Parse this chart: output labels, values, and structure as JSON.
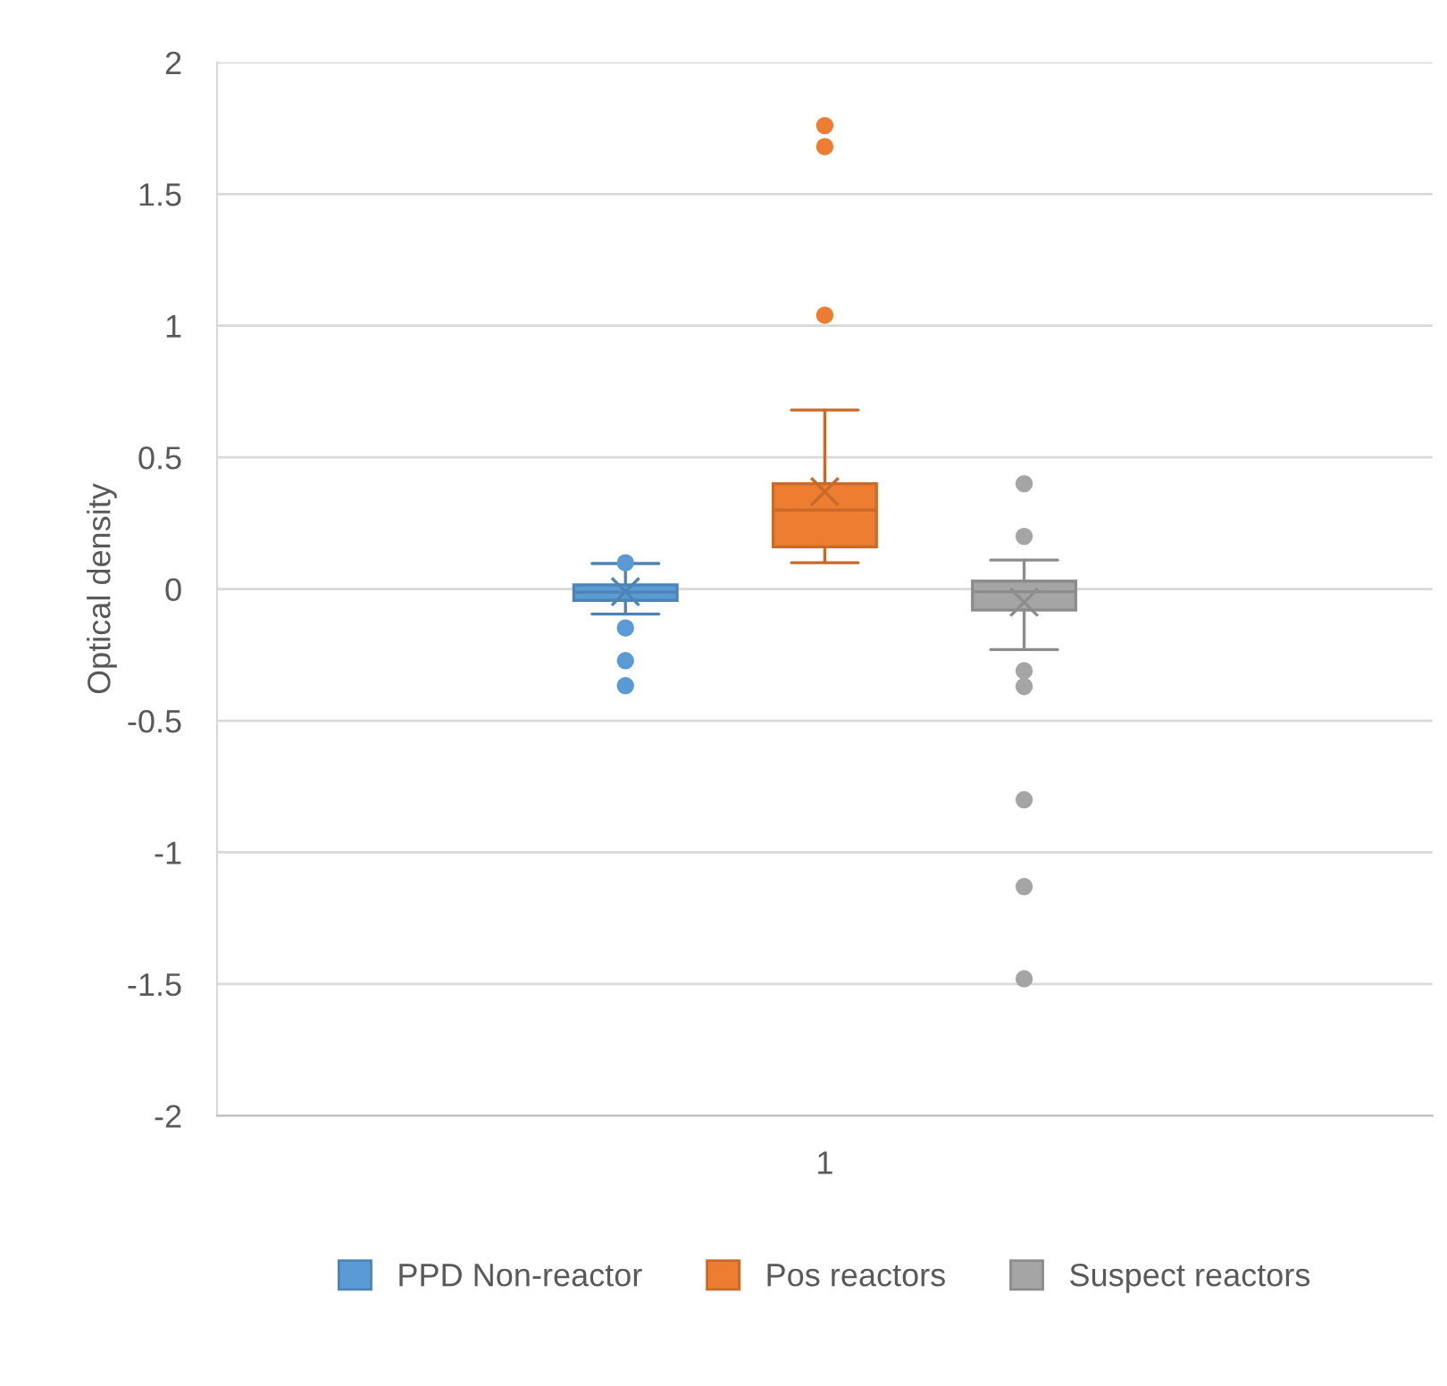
{
  "chart_data": {
    "type": "box",
    "ylabel": "Optical density",
    "categories": [
      "1"
    ],
    "series": [
      {
        "name": "PPD Non-reactor",
        "color": "#5b9bd5",
        "boxes": [
          {
            "low": -0.095,
            "q1": -0.043,
            "median": -0.012,
            "q3": 0.016,
            "high": 0.097,
            "mean": -0.01,
            "outliers": [
              0.1,
              -0.148,
              -0.272,
              -0.367
            ]
          }
        ]
      },
      {
        "name": "Pos reactors",
        "color": "#ed7d31",
        "boxes": [
          {
            "low": 0.1,
            "q1": 0.16,
            "median": 0.3,
            "q3": 0.4,
            "high": 0.68,
            "mean": 0.37,
            "outliers": [
              1.76,
              1.68,
              1.04
            ]
          }
        ]
      },
      {
        "name": "Suspect reactors",
        "color": "#a5a5a5",
        "boxes": [
          {
            "low": -0.23,
            "q1": -0.08,
            "median": -0.01,
            "q3": 0.03,
            "high": 0.11,
            "mean": -0.05,
            "outliers": [
              0.4,
              0.2,
              -0.31,
              -0.37,
              -0.8,
              -1.13,
              -1.48
            ]
          }
        ]
      }
    ],
    "ylim": [
      -2,
      2
    ],
    "yticks": [
      -2,
      -1.5,
      -1,
      -0.5,
      0,
      0.5,
      1,
      1.5,
      2
    ],
    "grid": "y",
    "legend": "bottom"
  }
}
